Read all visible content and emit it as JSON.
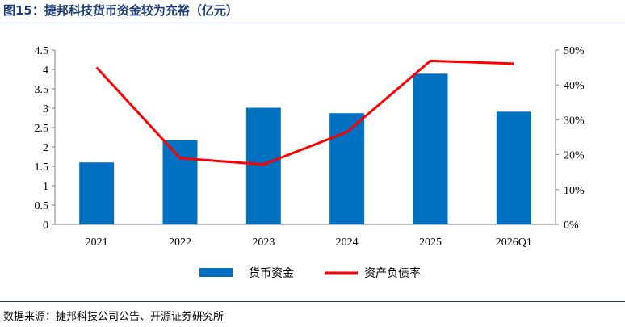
{
  "title": "图15：捷邦科技货币资金较为充裕（亿元）",
  "source": "数据来源：捷邦科技公司公告、开源证券研究所",
  "colors": {
    "bar": "#0070c0",
    "line": "#ff0000",
    "title": "#1f3d7a"
  },
  "chart_data": {
    "type": "bar",
    "categories": [
      "2021",
      "2022",
      "2023",
      "2024",
      "2025",
      "2026Q1"
    ],
    "series": [
      {
        "name": "货币资金",
        "type": "bar",
        "axis": "left",
        "values": [
          1.6,
          2.17,
          3.01,
          2.87,
          3.89,
          2.91
        ]
      },
      {
        "name": "资产负债率",
        "type": "line",
        "axis": "right",
        "values": [
          45.0,
          19.0,
          17.2,
          26.5,
          46.9,
          46.1
        ]
      }
    ],
    "y_left": {
      "ylim": [
        0,
        4.5
      ],
      "ticks": [
        "0",
        "0.5",
        "1",
        "1.5",
        "2",
        "2.5",
        "3",
        "3.5",
        "4",
        "4.5"
      ]
    },
    "y_right": {
      "ylim": [
        0,
        50
      ],
      "ticks": [
        "0%",
        "10%",
        "20%",
        "30%",
        "40%",
        "50%"
      ]
    },
    "legend_position": "bottom-center",
    "grid": false
  }
}
